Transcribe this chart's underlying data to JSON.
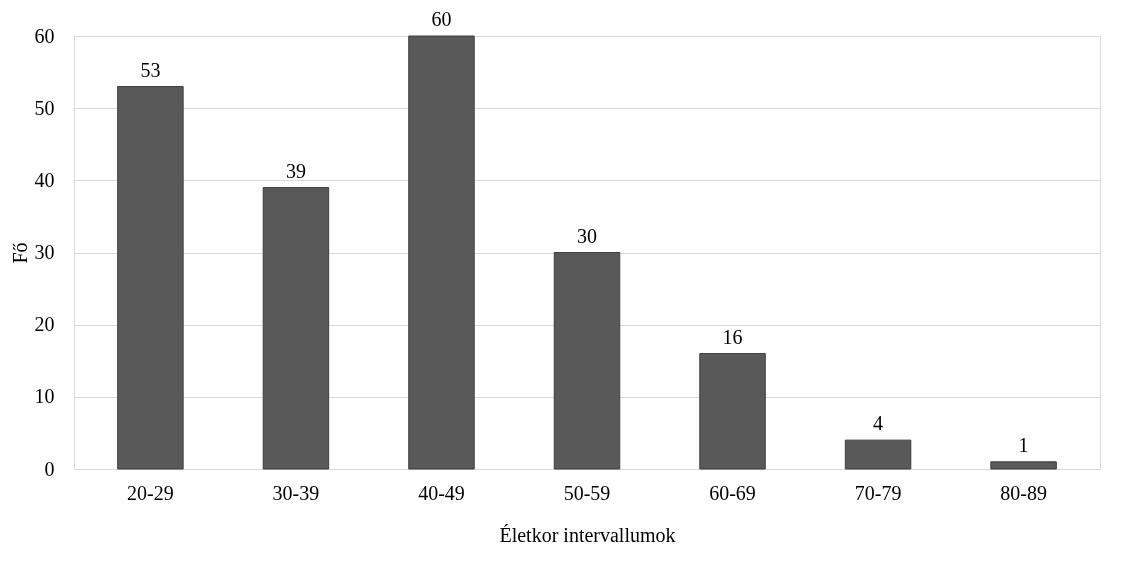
{
  "chart_data": {
    "type": "bar",
    "categories": [
      "20-29",
      "30-39",
      "40-49",
      "50-59",
      "60-69",
      "70-79",
      "80-89"
    ],
    "values": [
      53,
      39,
      60,
      30,
      16,
      4,
      1
    ],
    "color": "#595959",
    "xlabel": "Életkor intervallumok",
    "ylabel": "Fő",
    "ylim": [
      0,
      60
    ],
    "yticks": [
      0,
      10,
      20,
      30,
      40,
      50,
      60
    ],
    "grid": "y",
    "data_labels": true
  }
}
